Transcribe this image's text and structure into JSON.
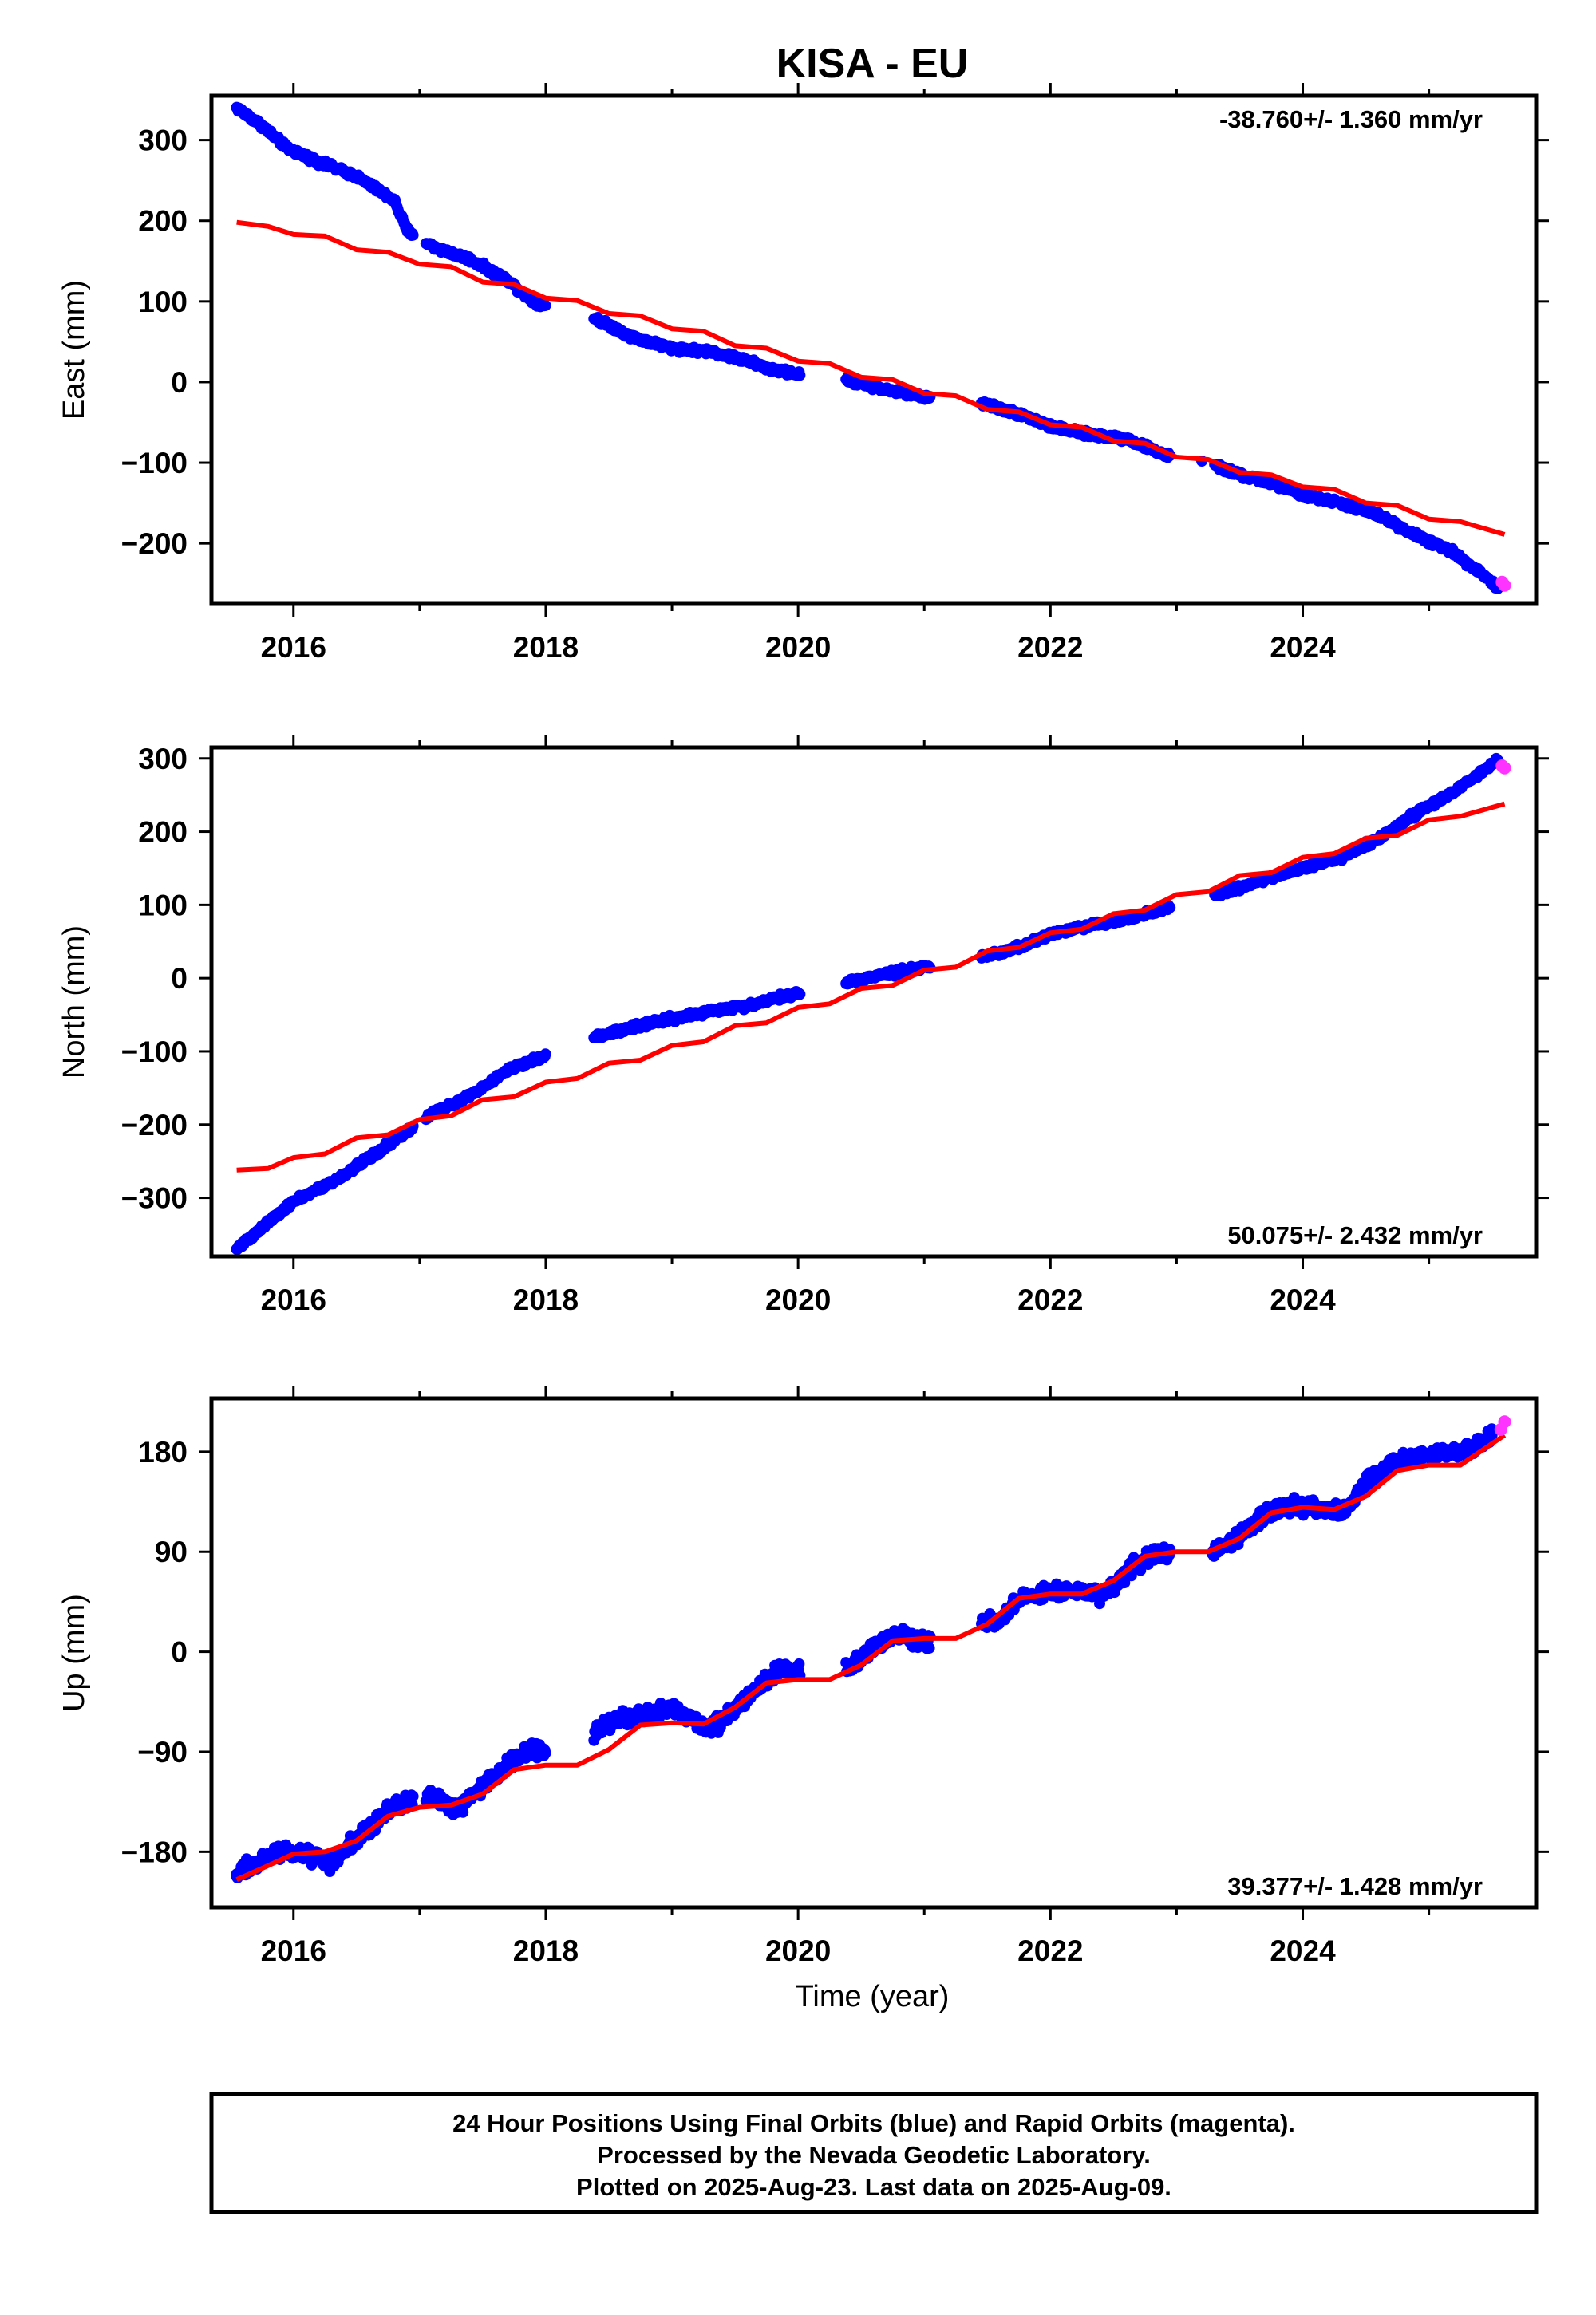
{
  "figure": {
    "title": "KISA - EU",
    "xlabel": "Time (year)",
    "footer": [
      "24 Hour Positions Using Final Orbits (blue) and Rapid Orbits (magenta).",
      "Processed by the Nevada Geodetic Laboratory.",
      "Plotted on 2025-Aug-23. Last data on 2025-Aug-09."
    ]
  },
  "colors": {
    "final_orbits": "#0000ff",
    "rapid_orbits": "#ff33ff",
    "model": "#ff0000",
    "frame": "#000000"
  },
  "chart_data": [
    {
      "type": "scatter",
      "ylabel": "East (mm)",
      "rate_text": "-38.760+/- 1.360 mm/yr",
      "xlim": [
        2015.35,
        2025.85
      ],
      "ylim": [
        -275,
        355
      ],
      "x_ticks": [
        2016,
        2018,
        2020,
        2022,
        2024
      ],
      "y_ticks": [
        300,
        200,
        100,
        0,
        -100,
        -200
      ],
      "y_tick_labels": [
        "300",
        "200",
        "100",
        "0",
        "−100",
        "−200"
      ],
      "grid": false,
      "final_orbits": [
        [
          2015.55,
          340
        ],
        [
          2015.75,
          318
        ],
        [
          2015.95,
          290
        ],
        [
          2016.2,
          273
        ],
        [
          2016.5,
          255
        ],
        [
          2016.8,
          225
        ],
        [
          2016.9,
          188
        ],
        [
          2017.1,
          168
        ],
        [
          2017.4,
          152
        ],
        [
          2017.7,
          126
        ],
        [
          2017.9,
          100
        ],
        [
          2018.4,
          78
        ],
        [
          2018.7,
          55
        ],
        [
          2019.0,
          42
        ],
        [
          2019.3,
          38
        ],
        [
          2019.6,
          26
        ],
        [
          2019.8,
          15
        ],
        [
          2020.0,
          10
        ],
        [
          2020.4,
          2
        ],
        [
          2020.7,
          -10
        ],
        [
          2021.0,
          -18
        ],
        [
          2021.5,
          -28
        ],
        [
          2021.8,
          -42
        ],
        [
          2022.0,
          -55
        ],
        [
          2022.3,
          -65
        ],
        [
          2022.6,
          -70
        ],
        [
          2022.9,
          -90
        ],
        [
          2023.2,
          -98
        ],
        [
          2023.5,
          -115
        ],
        [
          2023.8,
          -128
        ],
        [
          2024.0,
          -140
        ],
        [
          2024.3,
          -150
        ],
        [
          2024.6,
          -165
        ],
        [
          2024.9,
          -190
        ],
        [
          2025.2,
          -212
        ],
        [
          2025.4,
          -235
        ],
        [
          2025.55,
          -255
        ]
      ],
      "rapid_orbits": [
        [
          2025.58,
          -248
        ],
        [
          2025.6,
          -252
        ]
      ],
      "model": [
        [
          2015.55,
          198
        ],
        [
          2015.8,
          193
        ],
        [
          2016.0,
          183
        ],
        [
          2016.25,
          181
        ],
        [
          2016.5,
          164
        ],
        [
          2016.75,
          161
        ],
        [
          2017.0,
          146
        ],
        [
          2017.25,
          143
        ],
        [
          2017.5,
          124
        ],
        [
          2017.75,
          121
        ],
        [
          2018.0,
          104
        ],
        [
          2018.25,
          101
        ],
        [
          2018.5,
          85
        ],
        [
          2018.75,
          82
        ],
        [
          2019.0,
          66
        ],
        [
          2019.25,
          63
        ],
        [
          2019.5,
          45
        ],
        [
          2019.75,
          42
        ],
        [
          2020.0,
          26
        ],
        [
          2020.25,
          23
        ],
        [
          2020.5,
          6
        ],
        [
          2020.75,
          3
        ],
        [
          2021.0,
          -14
        ],
        [
          2021.25,
          -17
        ],
        [
          2021.5,
          -34
        ],
        [
          2021.75,
          -37
        ],
        [
          2022.0,
          -53
        ],
        [
          2022.25,
          -56
        ],
        [
          2022.5,
          -73
        ],
        [
          2022.75,
          -76
        ],
        [
          2023.0,
          -93
        ],
        [
          2023.25,
          -96
        ],
        [
          2023.5,
          -112
        ],
        [
          2023.75,
          -115
        ],
        [
          2024.0,
          -130
        ],
        [
          2024.25,
          -133
        ],
        [
          2024.5,
          -150
        ],
        [
          2024.75,
          -153
        ],
        [
          2025.0,
          -170
        ],
        [
          2025.25,
          -173
        ],
        [
          2025.6,
          -189
        ]
      ]
    },
    {
      "type": "scatter",
      "ylabel": "North (mm)",
      "rate_text": "50.075+/- 2.432 mm/yr",
      "xlim": [
        2015.35,
        2025.85
      ],
      "ylim": [
        -380,
        315
      ],
      "x_ticks": [
        2016,
        2018,
        2020,
        2022,
        2024
      ],
      "y_ticks": [
        300,
        200,
        100,
        0,
        -100,
        -200,
        -300
      ],
      "y_tick_labels": [
        "300",
        "200",
        "100",
        "0",
        "−100",
        "−200",
        "−300"
      ],
      "grid": false,
      "final_orbits": [
        [
          2015.55,
          -370
        ],
        [
          2015.75,
          -340
        ],
        [
          2016.0,
          -305
        ],
        [
          2016.3,
          -280
        ],
        [
          2016.6,
          -245
        ],
        [
          2016.9,
          -210
        ],
        [
          2017.1,
          -185
        ],
        [
          2017.4,
          -160
        ],
        [
          2017.7,
          -125
        ],
        [
          2017.9,
          -112
        ],
        [
          2018.4,
          -80
        ],
        [
          2018.7,
          -66
        ],
        [
          2019.0,
          -55
        ],
        [
          2019.3,
          -45
        ],
        [
          2019.6,
          -38
        ],
        [
          2019.8,
          -28
        ],
        [
          2020.0,
          -20
        ],
        [
          2020.4,
          -5
        ],
        [
          2020.7,
          5
        ],
        [
          2021.0,
          15
        ],
        [
          2021.5,
          30
        ],
        [
          2021.8,
          45
        ],
        [
          2022.0,
          60
        ],
        [
          2022.3,
          72
        ],
        [
          2022.6,
          80
        ],
        [
          2022.9,
          95
        ],
        [
          2023.4,
          118
        ],
        [
          2023.7,
          135
        ],
        [
          2024.0,
          150
        ],
        [
          2024.3,
          165
        ],
        [
          2024.6,
          190
        ],
        [
          2024.9,
          225
        ],
        [
          2025.2,
          255
        ],
        [
          2025.4,
          280
        ],
        [
          2025.55,
          297
        ]
      ],
      "rapid_orbits": [
        [
          2025.58,
          290
        ],
        [
          2025.6,
          287
        ]
      ],
      "model": [
        [
          2015.55,
          -262
        ],
        [
          2015.8,
          -260
        ],
        [
          2016.0,
          -245
        ],
        [
          2016.25,
          -240
        ],
        [
          2016.5,
          -218
        ],
        [
          2016.75,
          -214
        ],
        [
          2017.0,
          -193
        ],
        [
          2017.25,
          -188
        ],
        [
          2017.5,
          -166
        ],
        [
          2017.75,
          -162
        ],
        [
          2018.0,
          -142
        ],
        [
          2018.25,
          -137
        ],
        [
          2018.5,
          -116
        ],
        [
          2018.75,
          -112
        ],
        [
          2019.0,
          -92
        ],
        [
          2019.25,
          -87
        ],
        [
          2019.5,
          -65
        ],
        [
          2019.75,
          -61
        ],
        [
          2020.0,
          -40
        ],
        [
          2020.25,
          -35
        ],
        [
          2020.5,
          -14
        ],
        [
          2020.75,
          -10
        ],
        [
          2021.0,
          11
        ],
        [
          2021.25,
          15
        ],
        [
          2021.5,
          37
        ],
        [
          2021.75,
          42
        ],
        [
          2022.0,
          62
        ],
        [
          2022.25,
          67
        ],
        [
          2022.5,
          88
        ],
        [
          2022.75,
          93
        ],
        [
          2023.0,
          114
        ],
        [
          2023.25,
          118
        ],
        [
          2023.5,
          140
        ],
        [
          2023.75,
          144
        ],
        [
          2024.0,
          165
        ],
        [
          2024.25,
          170
        ],
        [
          2024.5,
          191
        ],
        [
          2024.75,
          195
        ],
        [
          2025.0,
          216
        ],
        [
          2025.25,
          221
        ],
        [
          2025.6,
          238
        ]
      ]
    },
    {
      "type": "scatter",
      "ylabel": "Up (mm)",
      "rate_text": "39.377+/- 1.428 mm/yr",
      "xlim": [
        2015.35,
        2025.85
      ],
      "ylim": [
        -230,
        228
      ],
      "x_ticks": [
        2016,
        2018,
        2020,
        2022,
        2024
      ],
      "y_ticks": [
        180,
        90,
        0,
        -90,
        -180
      ],
      "y_tick_labels": [
        "180",
        "90",
        "0",
        "−90",
        "−180"
      ],
      "grid": false,
      "final_orbits": [
        [
          2015.55,
          -200
        ],
        [
          2015.7,
          -190
        ],
        [
          2015.9,
          -180
        ],
        [
          2016.1,
          -182
        ],
        [
          2016.3,
          -190
        ],
        [
          2016.5,
          -168
        ],
        [
          2016.7,
          -148
        ],
        [
          2016.85,
          -135
        ],
        [
          2017.1,
          -130
        ],
        [
          2017.3,
          -142
        ],
        [
          2017.5,
          -120
        ],
        [
          2017.7,
          -100
        ],
        [
          2017.9,
          -90
        ],
        [
          2018.4,
          -72
        ],
        [
          2018.6,
          -58
        ],
        [
          2018.8,
          -55
        ],
        [
          2019.0,
          -50
        ],
        [
          2019.3,
          -70
        ],
        [
          2019.5,
          -50
        ],
        [
          2019.7,
          -30
        ],
        [
          2019.9,
          -15
        ],
        [
          2020.4,
          -15
        ],
        [
          2020.6,
          5
        ],
        [
          2020.8,
          15
        ],
        [
          2021.0,
          10
        ],
        [
          2021.6,
          30
        ],
        [
          2021.8,
          50
        ],
        [
          2022.2,
          55
        ],
        [
          2022.4,
          50
        ],
        [
          2022.6,
          70
        ],
        [
          2022.8,
          88
        ],
        [
          2023.3,
          90
        ],
        [
          2023.5,
          105
        ],
        [
          2023.7,
          125
        ],
        [
          2023.9,
          130
        ],
        [
          2024.1,
          130
        ],
        [
          2024.3,
          125
        ],
        [
          2024.5,
          150
        ],
        [
          2024.7,
          170
        ],
        [
          2024.9,
          175
        ],
        [
          2025.1,
          180
        ],
        [
          2025.3,
          180
        ],
        [
          2025.5,
          195
        ]
      ],
      "rapid_orbits": [
        [
          2025.57,
          200
        ],
        [
          2025.6,
          207
        ]
      ],
      "model": [
        [
          2015.55,
          -205
        ],
        [
          2015.75,
          -195
        ],
        [
          2016.0,
          -182
        ],
        [
          2016.25,
          -180
        ],
        [
          2016.5,
          -170
        ],
        [
          2016.75,
          -148
        ],
        [
          2017.0,
          -140
        ],
        [
          2017.25,
          -138
        ],
        [
          2017.5,
          -128
        ],
        [
          2017.75,
          -106
        ],
        [
          2018.0,
          -102
        ],
        [
          2018.25,
          -102
        ],
        [
          2018.5,
          -88
        ],
        [
          2018.75,
          -66
        ],
        [
          2019.0,
          -64
        ],
        [
          2019.25,
          -65
        ],
        [
          2019.5,
          -50
        ],
        [
          2019.75,
          -28
        ],
        [
          2020.0,
          -25
        ],
        [
          2020.25,
          -25
        ],
        [
          2020.5,
          -12
        ],
        [
          2020.75,
          10
        ],
        [
          2021.0,
          12
        ],
        [
          2021.25,
          12
        ],
        [
          2021.5,
          25
        ],
        [
          2021.75,
          48
        ],
        [
          2022.0,
          52
        ],
        [
          2022.25,
          52
        ],
        [
          2022.5,
          64
        ],
        [
          2022.75,
          86
        ],
        [
          2023.0,
          90
        ],
        [
          2023.25,
          90
        ],
        [
          2023.5,
          102
        ],
        [
          2023.75,
          125
        ],
        [
          2024.0,
          130
        ],
        [
          2024.25,
          128
        ],
        [
          2024.5,
          140
        ],
        [
          2024.75,
          163
        ],
        [
          2025.0,
          168
        ],
        [
          2025.25,
          168
        ],
        [
          2025.6,
          195
        ]
      ]
    }
  ]
}
